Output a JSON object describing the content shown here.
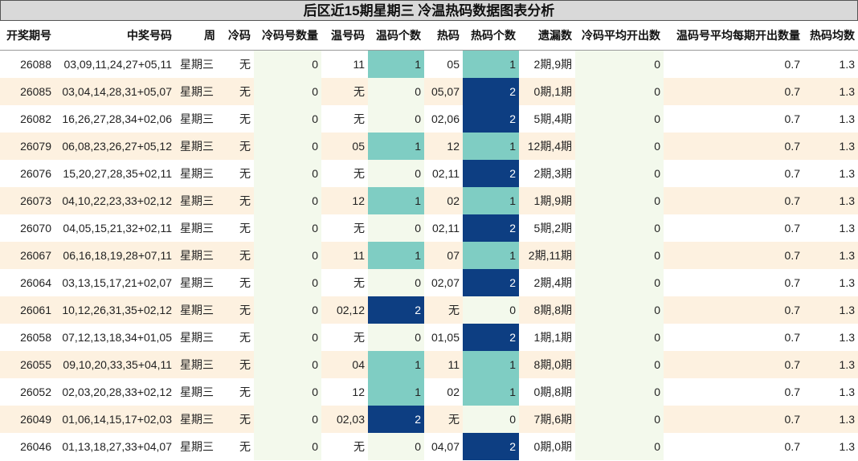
{
  "title": "后区近15期星期三 冷温热码数据图表分析",
  "headers": [
    "开奖期号",
    "中奖号码",
    "周",
    "冷码",
    "冷码号数量",
    "温号码",
    "温码个数",
    "热码",
    "热码个数",
    "遗漏数",
    "冷码平均开出数",
    "温码号平均每期开出数量",
    "热码均数"
  ],
  "colors": {
    "teal": "#7fcdc3",
    "navy": "#0d3e82",
    "stripe": "#fdf1e0",
    "green": "#f3f9ec"
  },
  "rows": [
    [
      "26088",
      "03,09,11,24,27+05,11",
      "星期三",
      "无",
      "0",
      "11",
      "1",
      "05",
      "1",
      "2期,9期",
      "0",
      "0.7",
      "1.3"
    ],
    [
      "26085",
      "03,04,14,28,31+05,07",
      "星期三",
      "无",
      "0",
      "无",
      "0",
      "05,07",
      "2",
      "0期,1期",
      "0",
      "0.7",
      "1.3"
    ],
    [
      "26082",
      "16,26,27,28,34+02,06",
      "星期三",
      "无",
      "0",
      "无",
      "0",
      "02,06",
      "2",
      "5期,4期",
      "0",
      "0.7",
      "1.3"
    ],
    [
      "26079",
      "06,08,23,26,27+05,12",
      "星期三",
      "无",
      "0",
      "05",
      "1",
      "12",
      "1",
      "12期,4期",
      "0",
      "0.7",
      "1.3"
    ],
    [
      "26076",
      "15,20,27,28,35+02,11",
      "星期三",
      "无",
      "0",
      "无",
      "0",
      "02,11",
      "2",
      "2期,3期",
      "0",
      "0.7",
      "1.3"
    ],
    [
      "26073",
      "04,10,22,23,33+02,12",
      "星期三",
      "无",
      "0",
      "12",
      "1",
      "02",
      "1",
      "1期,9期",
      "0",
      "0.7",
      "1.3"
    ],
    [
      "26070",
      "04,05,15,21,32+02,11",
      "星期三",
      "无",
      "0",
      "无",
      "0",
      "02,11",
      "2",
      "5期,2期",
      "0",
      "0.7",
      "1.3"
    ],
    [
      "26067",
      "06,16,18,19,28+07,11",
      "星期三",
      "无",
      "0",
      "11",
      "1",
      "07",
      "1",
      "2期,11期",
      "0",
      "0.7",
      "1.3"
    ],
    [
      "26064",
      "03,13,15,17,21+02,07",
      "星期三",
      "无",
      "0",
      "无",
      "0",
      "02,07",
      "2",
      "2期,4期",
      "0",
      "0.7",
      "1.3"
    ],
    [
      "26061",
      "10,12,26,31,35+02,12",
      "星期三",
      "无",
      "0",
      "02,12",
      "2",
      "无",
      "0",
      "8期,8期",
      "0",
      "0.7",
      "1.3"
    ],
    [
      "26058",
      "07,12,13,18,34+01,05",
      "星期三",
      "无",
      "0",
      "无",
      "0",
      "01,05",
      "2",
      "1期,1期",
      "0",
      "0.7",
      "1.3"
    ],
    [
      "26055",
      "09,10,20,33,35+04,11",
      "星期三",
      "无",
      "0",
      "04",
      "1",
      "11",
      "1",
      "8期,0期",
      "0",
      "0.7",
      "1.3"
    ],
    [
      "26052",
      "02,03,20,28,33+02,12",
      "星期三",
      "无",
      "0",
      "12",
      "1",
      "02",
      "1",
      "0期,8期",
      "0",
      "0.7",
      "1.3"
    ],
    [
      "26049",
      "01,06,14,15,17+02,03",
      "星期三",
      "无",
      "0",
      "02,03",
      "2",
      "无",
      "0",
      "7期,6期",
      "0",
      "0.7",
      "1.3"
    ],
    [
      "26046",
      "01,13,18,27,33+04,07",
      "星期三",
      "无",
      "0",
      "无",
      "0",
      "04,07",
      "2",
      "0期,0期",
      "0",
      "0.7",
      "1.3"
    ]
  ]
}
